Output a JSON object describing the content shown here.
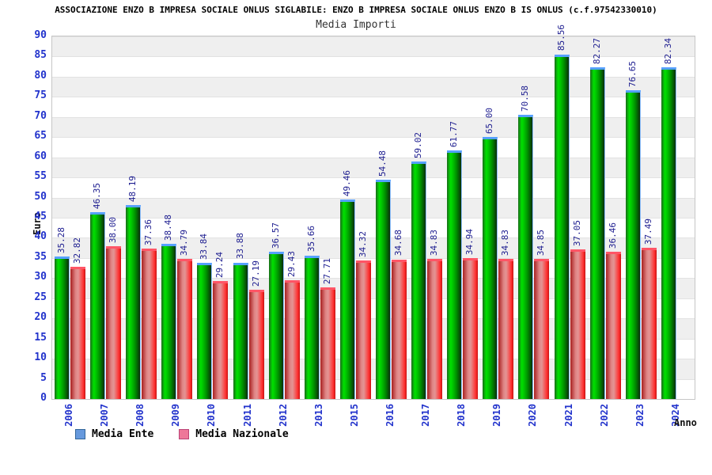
{
  "header": {
    "title": "ASSOCIAZIONE ENZO B IMPRESA SOCIALE ONLUS SIGLABILE: ENZO B IMPRESA SOCIALE ONLUS ENZO B IS ONLUS (c.f.97542330010)"
  },
  "chart_data": {
    "type": "bar",
    "title": "Media Importi",
    "xlabel": "Anno",
    "ylabel": "Euro",
    "ylim": [
      0,
      90
    ],
    "ytick_step": 5,
    "yticks": [
      0,
      5,
      10,
      15,
      20,
      25,
      30,
      35,
      40,
      45,
      50,
      55,
      60,
      65,
      70,
      75,
      80,
      85,
      90
    ],
    "grid": "horizontal-bands-alternating",
    "legend_position": "bottom-left",
    "categories": [
      "2006",
      "2007",
      "2008",
      "2009",
      "2010",
      "2011",
      "2012",
      "2013",
      "2015",
      "2016",
      "2017",
      "2018",
      "2019",
      "2020",
      "2021",
      "2022",
      "2023",
      "2024"
    ],
    "series": [
      {
        "name": "Media Ente",
        "bar_color": "#00cc00",
        "legend_color": "#6699dd",
        "values": [
          35.28,
          46.35,
          48.19,
          38.48,
          33.84,
          33.88,
          36.57,
          35.66,
          49.46,
          54.48,
          59.02,
          61.77,
          65.0,
          70.58,
          85.56,
          82.27,
          76.65,
          82.34
        ],
        "labels": [
          "35.28",
          "46.35",
          "48.19",
          "38.48",
          "33.84",
          "33.88",
          "36.57",
          "35.66",
          "49.46",
          "54.48",
          "59.02",
          "61.77",
          "65.00",
          "70.58",
          "85.56",
          "82.27",
          "76.65",
          "82.34"
        ]
      },
      {
        "name": "Media Nazionale",
        "bar_color": "#ee5555",
        "legend_color": "#ee7799",
        "values": [
          32.82,
          38.0,
          37.36,
          34.79,
          29.24,
          27.19,
          29.43,
          27.71,
          34.32,
          34.68,
          34.83,
          34.94,
          34.83,
          34.85,
          37.05,
          36.46,
          37.49,
          null
        ],
        "labels": [
          "32.82",
          "38.00",
          "37.36",
          "34.79",
          "29.24",
          "27.19",
          "29.43",
          "27.71",
          "34.32",
          "34.68",
          "34.83",
          "34.94",
          "34.83",
          "34.85",
          "37.05",
          "36.46",
          "37.49",
          null
        ]
      }
    ]
  },
  "colors": {
    "tick_label_blue": "#2233cc",
    "value_label_navy": "#1c1c8f",
    "band_gray": "#efefef",
    "plot_border": "#c6c6c6",
    "green_bar_cap": "#55a0ff",
    "red_bar_cap": "#ff5566"
  }
}
